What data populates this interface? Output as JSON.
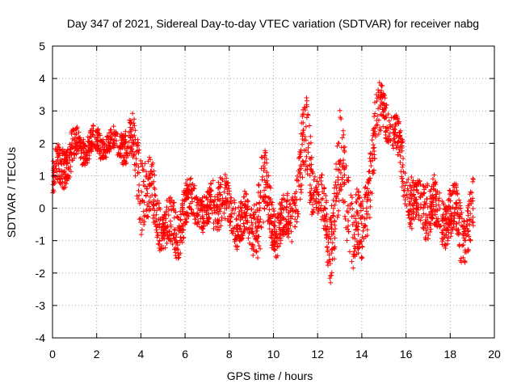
{
  "chart_data": {
    "type": "scatter",
    "title": "Day 347 of 2021, Sidereal Day-to-day VTEC variation (SDTVAR) for receiver nabg",
    "xlabel": "GPS time / hours",
    "ylabel": "SDTVAR / TECUs",
    "xlim": [
      0,
      20
    ],
    "ylim": [
      -4,
      5
    ],
    "x_ticks": [
      "0",
      "2",
      "4",
      "6",
      "8",
      "10",
      "12",
      "14",
      "16",
      "18",
      "20"
    ],
    "y_ticks": [
      "-4",
      "-3",
      "-2",
      "-1",
      "0",
      "1",
      "2",
      "3",
      "4",
      "5"
    ],
    "grid": true,
    "marker": "+",
    "color": "#ff0000",
    "x_range_hours": [
      0,
      19.1
    ],
    "trend": [
      {
        "x": 0.0,
        "y": 0.8,
        "spread": 0.9
      },
      {
        "x": 0.5,
        "y": 1.4,
        "spread": 0.9
      },
      {
        "x": 1.0,
        "y": 1.8,
        "spread": 0.8
      },
      {
        "x": 1.5,
        "y": 1.9,
        "spread": 0.6
      },
      {
        "x": 2.0,
        "y": 2.0,
        "spread": 0.6
      },
      {
        "x": 2.5,
        "y": 2.0,
        "spread": 0.5
      },
      {
        "x": 3.0,
        "y": 2.0,
        "spread": 0.6
      },
      {
        "x": 3.5,
        "y": 2.1,
        "spread": 0.9
      },
      {
        "x": 4.0,
        "y": 1.0,
        "spread": 1.8
      },
      {
        "x": 4.5,
        "y": 0.2,
        "spread": 1.4
      },
      {
        "x": 5.0,
        "y": -0.5,
        "spread": 0.9
      },
      {
        "x": 5.5,
        "y": -0.8,
        "spread": 1.2
      },
      {
        "x": 6.0,
        "y": 0.0,
        "spread": 1.0
      },
      {
        "x": 6.5,
        "y": 0.2,
        "spread": 0.8
      },
      {
        "x": 7.0,
        "y": -0.3,
        "spread": 0.8
      },
      {
        "x": 7.5,
        "y": 0.6,
        "spread": 1.3
      },
      {
        "x": 8.0,
        "y": -0.2,
        "spread": 1.0
      },
      {
        "x": 8.5,
        "y": -0.3,
        "spread": 1.0
      },
      {
        "x": 9.0,
        "y": -0.6,
        "spread": 1.0
      },
      {
        "x": 9.5,
        "y": 0.3,
        "spread": 2.0
      },
      {
        "x": 10.0,
        "y": -0.4,
        "spread": 1.2
      },
      {
        "x": 10.5,
        "y": -0.6,
        "spread": 1.0
      },
      {
        "x": 11.0,
        "y": 0.3,
        "spread": 1.2
      },
      {
        "x": 11.5,
        "y": 2.0,
        "spread": 2.0
      },
      {
        "x": 12.0,
        "y": 0.5,
        "spread": 1.0
      },
      {
        "x": 12.5,
        "y": -1.0,
        "spread": 1.6
      },
      {
        "x": 13.0,
        "y": 1.0,
        "spread": 2.2
      },
      {
        "x": 13.5,
        "y": 0.0,
        "spread": 1.8
      },
      {
        "x": 14.0,
        "y": -1.2,
        "spread": 1.3
      },
      {
        "x": 14.5,
        "y": 2.2,
        "spread": 1.8
      },
      {
        "x": 15.0,
        "y": 3.0,
        "spread": 0.9
      },
      {
        "x": 15.5,
        "y": 2.3,
        "spread": 0.8
      },
      {
        "x": 16.0,
        "y": 0.8,
        "spread": 1.3
      },
      {
        "x": 16.5,
        "y": -0.2,
        "spread": 1.0
      },
      {
        "x": 17.0,
        "y": 0.4,
        "spread": 1.4
      },
      {
        "x": 17.5,
        "y": -0.4,
        "spread": 1.0
      },
      {
        "x": 18.0,
        "y": 0.0,
        "spread": 1.2
      },
      {
        "x": 18.5,
        "y": -0.8,
        "spread": 1.2
      },
      {
        "x": 19.0,
        "y": -0.2,
        "spread": 1.2
      }
    ]
  }
}
